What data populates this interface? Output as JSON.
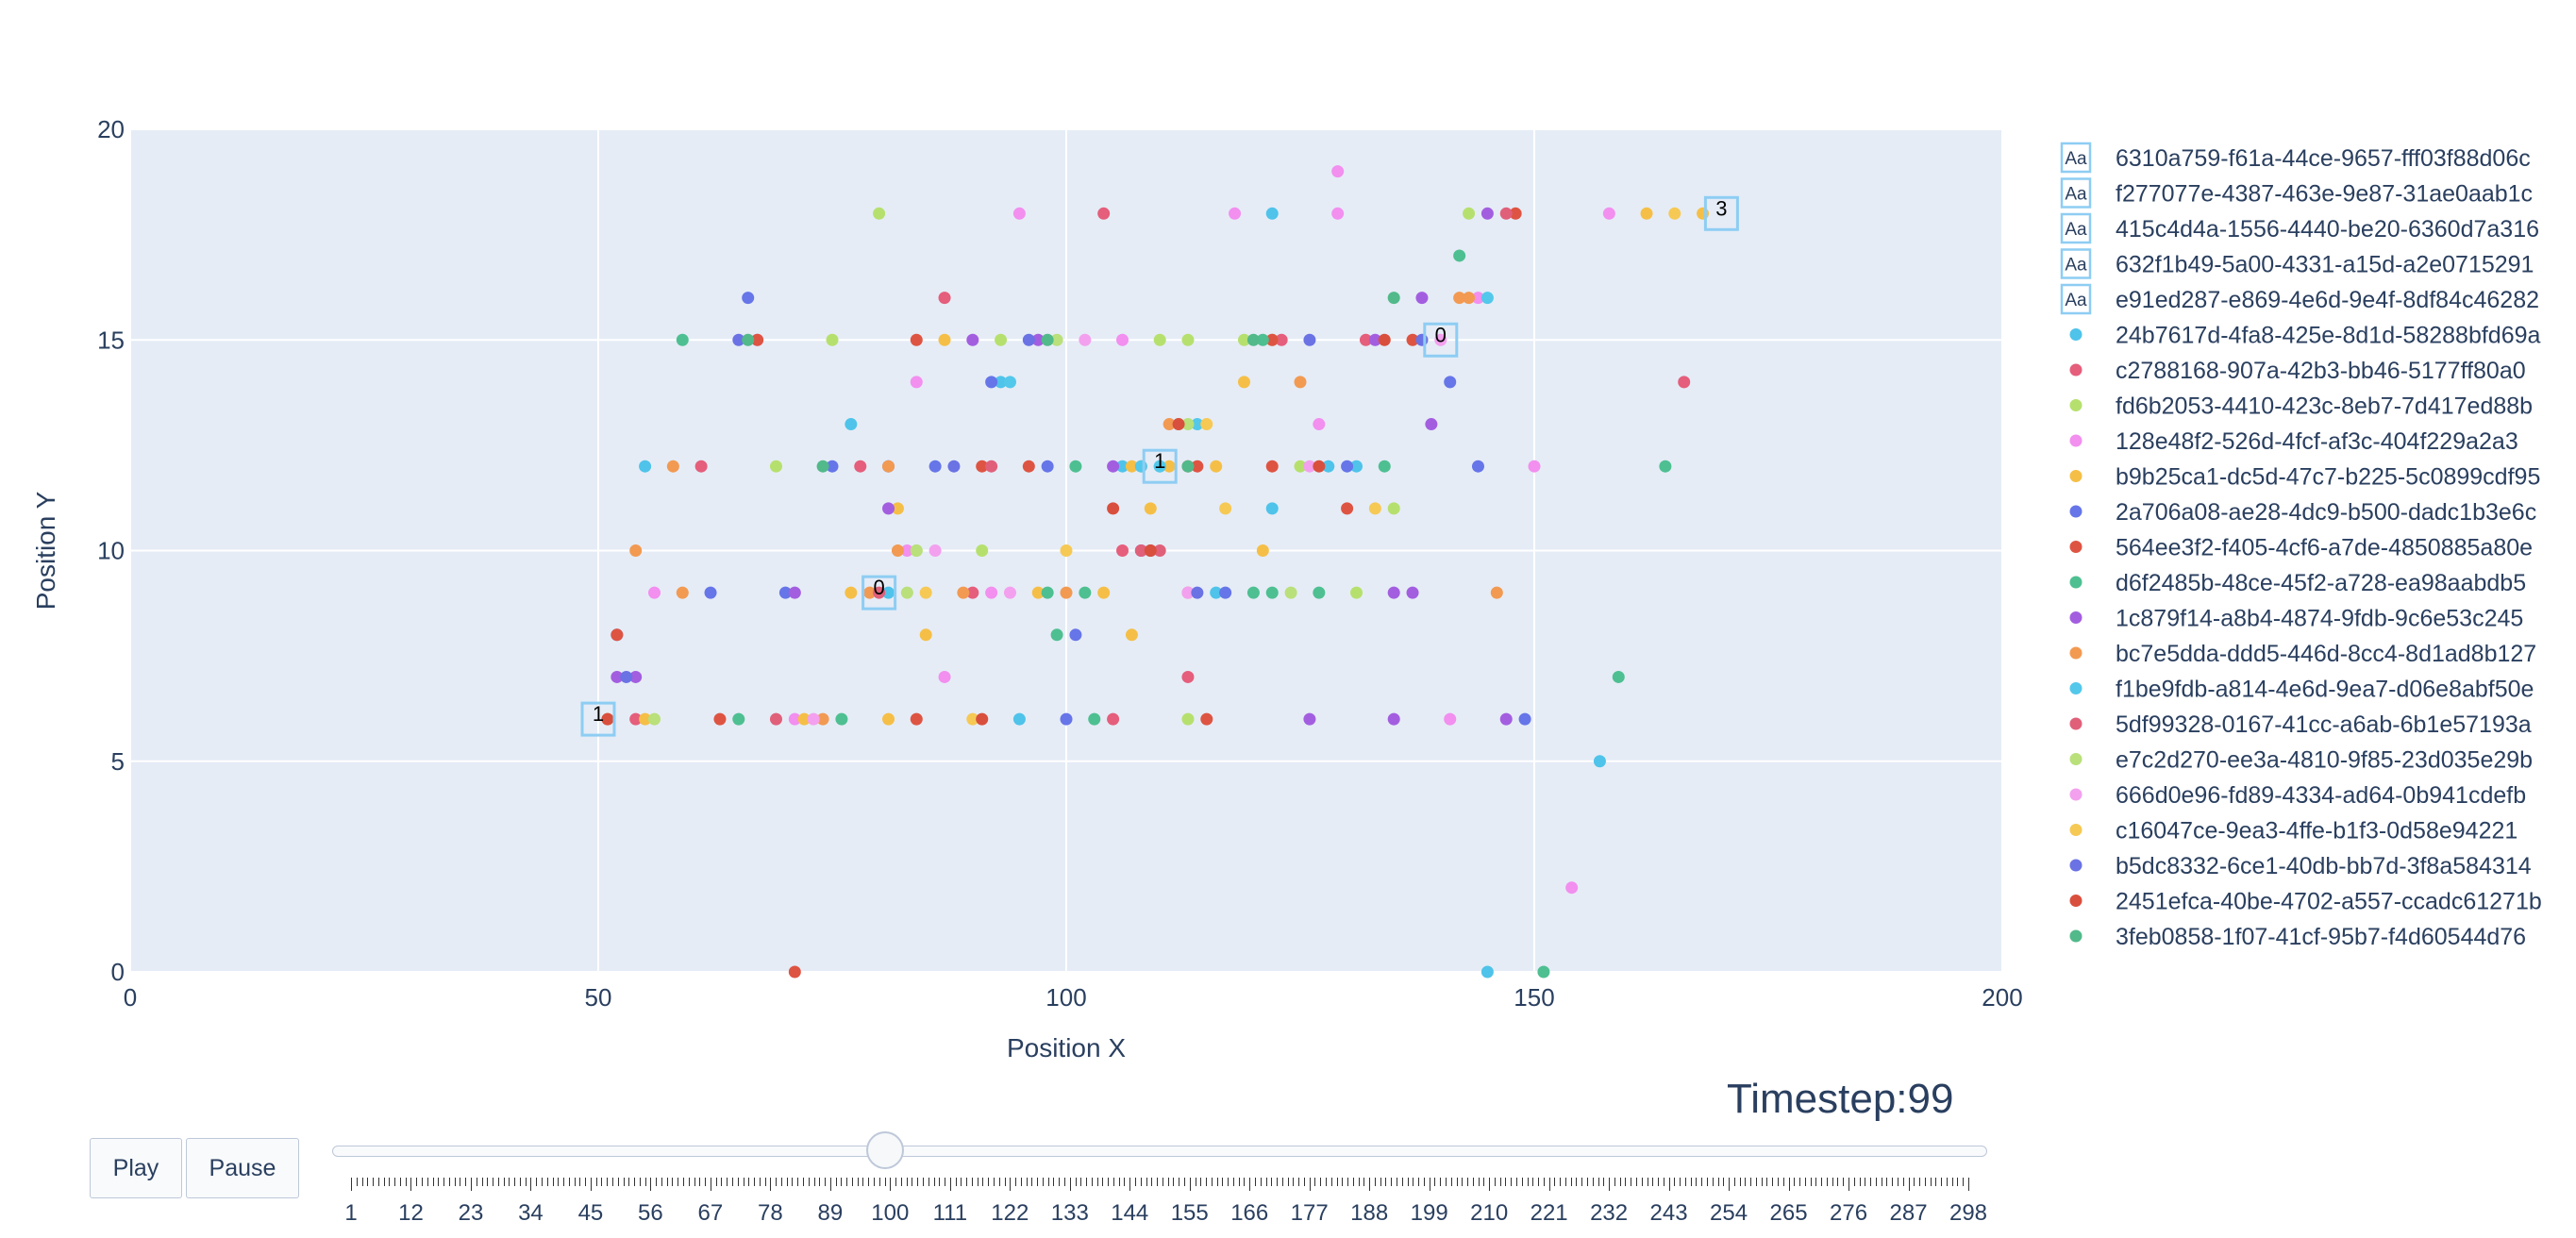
{
  "chart_data": {
    "type": "scatter",
    "xlabel": "Position X",
    "ylabel": "Position Y",
    "xlim": [
      0,
      200
    ],
    "ylim": [
      0,
      20
    ],
    "xticks": [
      "0",
      "50",
      "100",
      "150",
      "200"
    ],
    "yticks": [
      "0",
      "5",
      "10",
      "15",
      "20"
    ],
    "grid": true,
    "legend_placement": "right",
    "annotations": [
      {
        "x": 50,
        "y": 6,
        "text": "1"
      },
      {
        "x": 80,
        "y": 9,
        "text": "0"
      },
      {
        "x": 110,
        "y": 12,
        "text": "1"
      },
      {
        "x": 140,
        "y": 15,
        "text": "0"
      },
      {
        "x": 170,
        "y": 18,
        "text": "3"
      }
    ],
    "annotation_legend": [
      {
        "name": "6310a759-f61a-44ce-9657-fff03f88d06c"
      },
      {
        "name": "f277077e-4387-463e-9e87-31ae0aab1c"
      },
      {
        "name": "415c4d4a-1556-4440-be20-6360d7a316"
      },
      {
        "name": "632f1b49-5a00-4331-a15d-a2e0715291"
      },
      {
        "name": "e91ed287-e869-4e6d-9e4f-8df84c46282"
      }
    ],
    "series": [
      {
        "name": "24b7617d-4fa8-425e-8d1d-58288bfd69a",
        "color": "#4fc3ea",
        "points": [
          [
            55,
            12
          ],
          [
            77,
            13
          ],
          [
            81,
            9
          ],
          [
            95,
            6
          ],
          [
            93,
            14
          ],
          [
            106,
            12
          ],
          [
            110,
            12
          ],
          [
            116,
            9
          ],
          [
            122,
            11
          ],
          [
            122,
            18
          ],
          [
            128,
            12
          ],
          [
            131,
            12
          ],
          [
            145,
            0
          ],
          [
            157,
            5
          ]
        ]
      },
      {
        "name": "c2788168-907a-42b3-bb46-5177ff80a0",
        "color": "#e55e7b",
        "points": [
          [
            54,
            6
          ],
          [
            61,
            12
          ],
          [
            78,
            12
          ],
          [
            87,
            16
          ],
          [
            90,
            9
          ],
          [
            104,
            18
          ],
          [
            106,
            10
          ],
          [
            105,
            6
          ],
          [
            108,
            10
          ],
          [
            113,
            7
          ],
          [
            123,
            15
          ],
          [
            132,
            15
          ],
          [
            166,
            14
          ]
        ]
      },
      {
        "name": "fd6b2053-4410-423c-8eb7-7d417ed88b",
        "color": "#b6e06e",
        "points": [
          [
            69,
            12
          ],
          [
            75,
            15
          ],
          [
            80,
            18
          ],
          [
            84,
            10
          ],
          [
            91,
            10
          ],
          [
            93,
            15
          ],
          [
            110,
            15
          ],
          [
            113,
            15
          ],
          [
            113,
            6
          ],
          [
            119,
            15
          ],
          [
            122,
            15
          ],
          [
            125,
            12
          ],
          [
            131,
            9
          ],
          [
            135,
            11
          ],
          [
            143,
            18
          ]
        ]
      },
      {
        "name": "128e48f2-526d-4fcf-af3c-404f229a2a3",
        "color": "#f28fef",
        "points": [
          [
            56,
            9
          ],
          [
            67,
            15
          ],
          [
            71,
            6
          ],
          [
            83,
            10
          ],
          [
            84,
            14
          ],
          [
            87,
            7
          ],
          [
            92,
            9
          ],
          [
            95,
            18
          ],
          [
            106,
            15
          ],
          [
            118,
            18
          ],
          [
            127,
            13
          ],
          [
            129,
            18
          ],
          [
            129,
            19
          ],
          [
            141,
            6
          ],
          [
            144,
            16
          ],
          [
            150,
            12
          ],
          [
            154,
            2
          ],
          [
            158,
            18
          ]
        ]
      },
      {
        "name": "b9b25ca1-dc5d-47c7-b225-5c0899cdf95",
        "color": "#f5bf47",
        "points": [
          [
            55,
            6
          ],
          [
            72,
            6
          ],
          [
            77,
            9
          ],
          [
            81,
            6
          ],
          [
            82,
            11
          ],
          [
            85,
            8
          ],
          [
            87,
            15
          ],
          [
            97,
            9
          ],
          [
            104,
            9
          ],
          [
            107,
            12
          ],
          [
            107,
            8
          ],
          [
            109,
            11
          ],
          [
            111,
            12
          ],
          [
            116,
            12
          ],
          [
            119,
            14
          ],
          [
            121,
            10
          ],
          [
            162,
            18
          ],
          [
            168,
            18
          ]
        ]
      },
      {
        "name": "2a706a08-ae28-4dc9-b500-dadc1b3e6c",
        "color": "#6675e8",
        "points": [
          [
            52,
            8
          ],
          [
            62,
            9
          ],
          [
            66,
            16
          ],
          [
            70,
            9
          ],
          [
            75,
            12
          ],
          [
            81,
            12
          ],
          [
            86,
            12
          ],
          [
            92,
            14
          ],
          [
            98,
            12
          ],
          [
            101,
            8
          ],
          [
            100,
            6
          ],
          [
            108,
            10
          ],
          [
            109,
            10
          ],
          [
            117,
            9
          ],
          [
            130,
            12
          ],
          [
            141,
            14
          ],
          [
            144,
            12
          ],
          [
            149,
            6
          ]
        ]
      },
      {
        "name": "564ee3f2-f405-4cf6-a7de-4850885a80e",
        "color": "#de5442",
        "points": [
          [
            52,
            8
          ],
          [
            63,
            6
          ],
          [
            67,
            15
          ],
          [
            71,
            0
          ],
          [
            84,
            6
          ],
          [
            84,
            15
          ],
          [
            91,
            12
          ],
          [
            96,
            12
          ],
          [
            109,
            10
          ],
          [
            113,
            12
          ],
          [
            114,
            12
          ],
          [
            115,
            6
          ],
          [
            122,
            12
          ],
          [
            122,
            15
          ],
          [
            130,
            11
          ],
          [
            137,
            15
          ],
          [
            148,
            18
          ]
        ]
      },
      {
        "name": "d6f2485b-48ce-45f2-a728-ea98aabdb5",
        "color": "#4ebf91",
        "points": [
          [
            59,
            15
          ],
          [
            65,
            6
          ],
          [
            76,
            6
          ],
          [
            98,
            9
          ],
          [
            99,
            8
          ],
          [
            101,
            12
          ],
          [
            102,
            9
          ],
          [
            103,
            6
          ],
          [
            120,
            9
          ],
          [
            121,
            15
          ],
          [
            122,
            9
          ],
          [
            127,
            9
          ],
          [
            134,
            12
          ],
          [
            142,
            17
          ],
          [
            151,
            0
          ],
          [
            159,
            7
          ],
          [
            164,
            12
          ]
        ]
      },
      {
        "name": "1c879f14-a8b4-4874-9fdb-9c6e53c245",
        "color": "#a35ee0",
        "points": [
          [
            52,
            7
          ],
          [
            54,
            7
          ],
          [
            71,
            9
          ],
          [
            81,
            11
          ],
          [
            90,
            15
          ],
          [
            97,
            15
          ],
          [
            105,
            12
          ],
          [
            126,
            6
          ],
          [
            133,
            15
          ],
          [
            135,
            9
          ],
          [
            135,
            6
          ],
          [
            137,
            9
          ],
          [
            138,
            16
          ],
          [
            139,
            13
          ],
          [
            145,
            18
          ],
          [
            147,
            6
          ]
        ]
      },
      {
        "name": "bc7e5dda-ddd5-446d-8cc4-8d1ad8b127",
        "color": "#f29a52",
        "points": [
          [
            51,
            6
          ],
          [
            54,
            10
          ],
          [
            58,
            12
          ],
          [
            59,
            9
          ],
          [
            74,
            6
          ],
          [
            79,
            9
          ],
          [
            81,
            12
          ],
          [
            82,
            10
          ],
          [
            89,
            9
          ],
          [
            100,
            9
          ],
          [
            108,
            12
          ],
          [
            111,
            13
          ],
          [
            125,
            14
          ],
          [
            142,
            16
          ],
          [
            143,
            16
          ],
          [
            146,
            9
          ]
        ]
      },
      {
        "name": "f1be9fdb-a814-4e6d-9ea7-d06e8abf50e",
        "color": "#53c8eb",
        "points": [
          [
            94,
            14
          ],
          [
            108,
            12
          ],
          [
            110,
            12
          ],
          [
            114,
            13
          ],
          [
            145,
            16
          ]
        ]
      },
      {
        "name": "5df99328-0167-41cc-a6ab-6b1e57193a",
        "color": "#e0607a",
        "points": [
          [
            69,
            6
          ],
          [
            80,
            9
          ],
          [
            92,
            12
          ],
          [
            108,
            10
          ],
          [
            110,
            10
          ],
          [
            113,
            9
          ],
          [
            147,
            18
          ]
        ]
      },
      {
        "name": "e7c2d270-ee3a-4810-9f85-23d035e29b",
        "color": "#b9e07a",
        "points": [
          [
            56,
            6
          ],
          [
            83,
            9
          ],
          [
            84,
            10
          ],
          [
            99,
            15
          ],
          [
            112,
            13
          ],
          [
            113,
            13
          ],
          [
            124,
            9
          ]
        ]
      },
      {
        "name": "666d0e96-fd89-4334-ad64-0b941cdefb",
        "color": "#f3a0ee",
        "points": [
          [
            73,
            6
          ],
          [
            86,
            10
          ],
          [
            94,
            9
          ],
          [
            102,
            15
          ],
          [
            113,
            9
          ],
          [
            126,
            12
          ],
          [
            140,
            15
          ]
        ]
      },
      {
        "name": "c16047ce-9ea3-4ffe-b1f3-0d58e94221",
        "color": "#f6c955",
        "points": [
          [
            85,
            9
          ],
          [
            90,
            6
          ],
          [
            100,
            10
          ],
          [
            115,
            13
          ],
          [
            117,
            11
          ],
          [
            133,
            11
          ],
          [
            165,
            18
          ]
        ]
      },
      {
        "name": "b5dc8332-6ce1-40db-bb7d-3f8a584314",
        "color": "#6a72e4",
        "points": [
          [
            53,
            7
          ],
          [
            65,
            15
          ],
          [
            88,
            12
          ],
          [
            96,
            15
          ],
          [
            114,
            9
          ],
          [
            126,
            15
          ],
          [
            138,
            15
          ]
        ]
      },
      {
        "name": "2451efca-40be-4702-a557-ccadc61271b",
        "color": "#d94f3d",
        "points": [
          [
            51,
            6
          ],
          [
            91,
            6
          ],
          [
            105,
            11
          ],
          [
            109,
            10
          ],
          [
            112,
            13
          ],
          [
            127,
            12
          ],
          [
            134,
            15
          ]
        ]
      },
      {
        "name": "3feb0858-1f07-41cf-95b7-f4d60544d76",
        "color": "#52b98a",
        "points": [
          [
            66,
            15
          ],
          [
            74,
            12
          ],
          [
            98,
            15
          ],
          [
            113,
            12
          ],
          [
            120,
            15
          ],
          [
            135,
            16
          ]
        ]
      }
    ]
  },
  "controls": {
    "play_label": "Play",
    "pause_label": "Pause",
    "timestep_label": "Timestep:99",
    "slider_value": 99,
    "slider_min": 1,
    "slider_max": 298,
    "slider_tick_labels": [
      "1",
      "12",
      "23",
      "34",
      "45",
      "56",
      "67",
      "78",
      "89",
      "100",
      "111",
      "122",
      "133",
      "144",
      "155",
      "166",
      "177",
      "188",
      "199",
      "210",
      "221",
      "232",
      "243",
      "254",
      "265",
      "276",
      "287",
      "298"
    ]
  }
}
